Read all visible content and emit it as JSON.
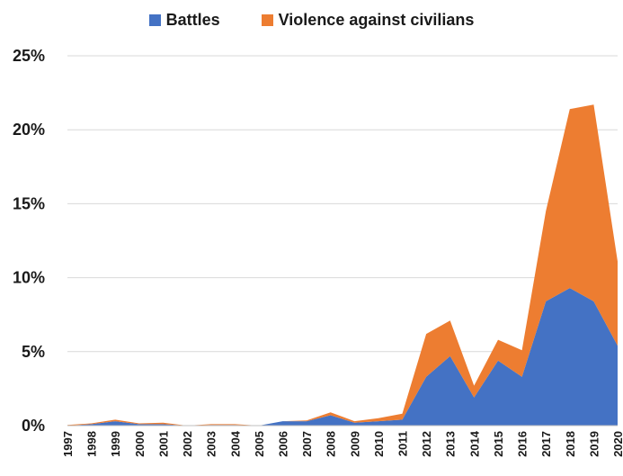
{
  "chart_data": {
    "type": "area",
    "stacked": true,
    "x": [
      "1997",
      "1998",
      "1999",
      "2000",
      "2001",
      "2002",
      "2003",
      "2004",
      "2005",
      "2006",
      "2007",
      "2008",
      "2009",
      "2010",
      "2011",
      "2012",
      "2013",
      "2014",
      "2015",
      "2016",
      "2017",
      "2018",
      "2019",
      "2020"
    ],
    "series": [
      {
        "name": "Battles",
        "color": "#4472C4",
        "values": [
          0.0,
          0.1,
          0.3,
          0.1,
          0.1,
          0.0,
          0.05,
          0.05,
          0.0,
          0.3,
          0.3,
          0.7,
          0.2,
          0.3,
          0.4,
          3.3,
          4.7,
          1.9,
          4.4,
          3.3,
          8.4,
          9.3,
          8.4,
          5.4
        ]
      },
      {
        "name": "Violence against civilians",
        "color": "#ED7D31",
        "values": [
          0.05,
          0.05,
          0.1,
          0.05,
          0.1,
          0.0,
          0.05,
          0.05,
          0.0,
          0.0,
          0.05,
          0.2,
          0.1,
          0.2,
          0.4,
          2.9,
          2.4,
          0.8,
          1.4,
          1.8,
          6.1,
          12.1,
          13.3,
          5.7
        ]
      }
    ],
    "ylim": [
      0,
      25
    ],
    "yticks": [
      "0%",
      "5%",
      "10%",
      "15%",
      "20%",
      "25%"
    ],
    "grid": true,
    "legend_position": "top"
  }
}
